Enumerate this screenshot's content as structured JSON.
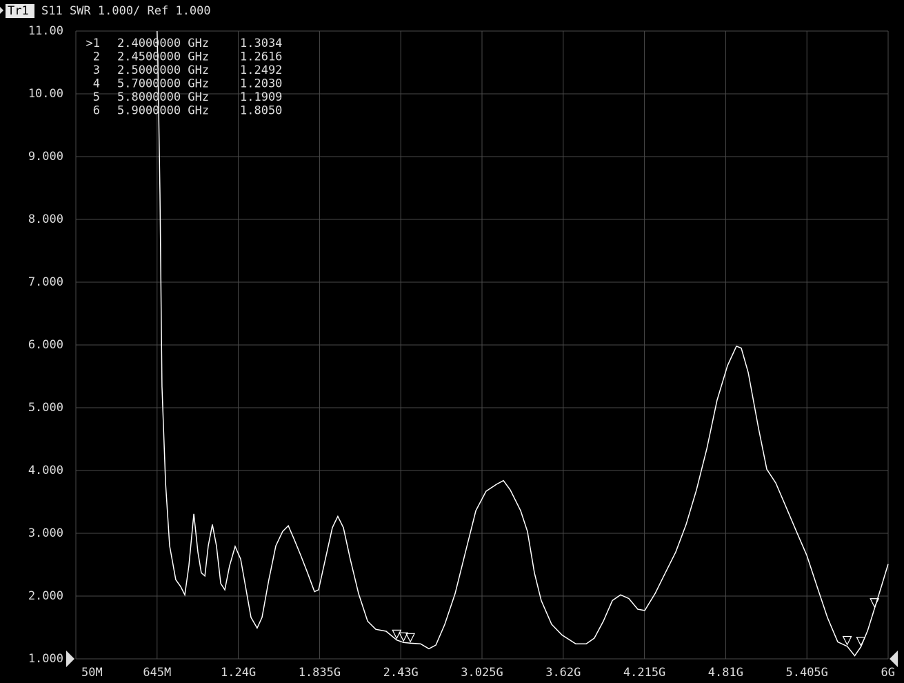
{
  "chart_data": {
    "type": "line",
    "trace_label": "Tr1",
    "title": "S11 SWR 1.000/ Ref 1.000",
    "color": "#ffffff",
    "grid": true,
    "xlim": [
      0.05,
      6.0
    ],
    "ylim": [
      1,
      11
    ],
    "xticks": [
      {
        "value": 0.05,
        "label": "50M"
      },
      {
        "value": 0.645,
        "label": "645M"
      },
      {
        "value": 1.24,
        "label": "1.24G"
      },
      {
        "value": 1.835,
        "label": "1.835G"
      },
      {
        "value": 2.43,
        "label": "2.43G"
      },
      {
        "value": 3.025,
        "label": "3.025G"
      },
      {
        "value": 3.62,
        "label": "3.62G"
      },
      {
        "value": 4.215,
        "label": "4.215G"
      },
      {
        "value": 4.81,
        "label": "4.81G"
      },
      {
        "value": 5.405,
        "label": "5.405G"
      },
      {
        "value": 6.0,
        "label": "6G"
      }
    ],
    "yticks": [
      {
        "value": 11,
        "label": "11.00"
      },
      {
        "value": 10,
        "label": "10.00"
      },
      {
        "value": 9,
        "label": "9.000"
      },
      {
        "value": 8,
        "label": "8.000"
      },
      {
        "value": 7,
        "label": "7.000"
      },
      {
        "value": 6,
        "label": "6.000"
      },
      {
        "value": 5,
        "label": "5.000"
      },
      {
        "value": 4,
        "label": "4.000"
      },
      {
        "value": 3,
        "label": "3.000"
      },
      {
        "value": 2,
        "label": "2.000"
      },
      {
        "value": 1,
        "label": "1.000"
      }
    ],
    "x": [
      0.645,
      0.651,
      0.666,
      0.681,
      0.707,
      0.737,
      0.782,
      0.818,
      0.848,
      0.878,
      0.914,
      0.944,
      0.969,
      0.995,
      1.02,
      1.05,
      1.08,
      1.111,
      1.141,
      1.176,
      1.217,
      1.257,
      1.293,
      1.333,
      1.378,
      1.414,
      1.464,
      1.515,
      1.565,
      1.606,
      1.646,
      1.697,
      1.747,
      1.798,
      1.828,
      1.878,
      1.929,
      1.969,
      2.01,
      2.06,
      2.121,
      2.187,
      2.247,
      2.323,
      2.4,
      2.45,
      2.5,
      2.575,
      2.636,
      2.687,
      2.752,
      2.828,
      2.904,
      2.98,
      3.055,
      3.131,
      3.182,
      3.232,
      3.308,
      3.358,
      3.409,
      3.459,
      3.535,
      3.611,
      3.712,
      3.788,
      3.848,
      3.914,
      3.98,
      4.04,
      4.101,
      4.166,
      4.217,
      4.293,
      4.368,
      4.444,
      4.52,
      4.596,
      4.672,
      4.747,
      4.823,
      4.889,
      4.924,
      4.975,
      5.05,
      5.111,
      5.177,
      5.252,
      5.328,
      5.404,
      5.48,
      5.555,
      5.631,
      5.7,
      5.755,
      5.8,
      5.85,
      5.9,
      5.95,
      6.0
    ],
    "values": [
      11,
      10.5,
      8.4,
      5.34,
      3.8,
      2.8,
      2.26,
      2.15,
      2.02,
      2.48,
      3.31,
      2.7,
      2.37,
      2.32,
      2.8,
      3.14,
      2.8,
      2.2,
      2.1,
      2.48,
      2.79,
      2.59,
      2.15,
      1.66,
      1.49,
      1.66,
      2.26,
      2.8,
      3.03,
      3.12,
      2.92,
      2.65,
      2.37,
      2.07,
      2.1,
      2.59,
      3.09,
      3.27,
      3.09,
      2.59,
      2.04,
      1.6,
      1.47,
      1.44,
      1.3,
      1.26,
      1.25,
      1.24,
      1.16,
      1.22,
      1.55,
      2.04,
      2.7,
      3.36,
      3.67,
      3.78,
      3.84,
      3.69,
      3.36,
      3.03,
      2.37,
      1.93,
      1.55,
      1.38,
      1.24,
      1.24,
      1.33,
      1.6,
      1.93,
      2.02,
      1.96,
      1.79,
      1.77,
      2.04,
      2.37,
      2.7,
      3.14,
      3.69,
      4.35,
      5.12,
      5.67,
      5.98,
      5.95,
      5.56,
      4.68,
      4.02,
      3.8,
      3.42,
      3.03,
      2.65,
      2.15,
      1.66,
      1.27,
      1.2,
      1.05,
      1.19,
      1.45,
      1.8,
      2.15,
      2.51
    ],
    "markers": {
      "names": [
        ">1",
        "2",
        "3",
        "4",
        "5",
        "6"
      ],
      "x": [
        2.4,
        2.45,
        2.5,
        5.7,
        5.8,
        5.9
      ],
      "x_labels": [
        "2.4000000 GHz",
        "2.4500000 GHz",
        "2.5000000 GHz",
        "5.7000000 GHz",
        "5.8000000 GHz",
        "5.9000000 GHz"
      ],
      "values": [
        1.3034,
        1.2616,
        1.2492,
        1.203,
        1.1909,
        1.805
      ],
      "value_labels": [
        "1.3034",
        "1.2616",
        "1.2492",
        "1.2030",
        "1.1909",
        "1.8050"
      ]
    }
  }
}
